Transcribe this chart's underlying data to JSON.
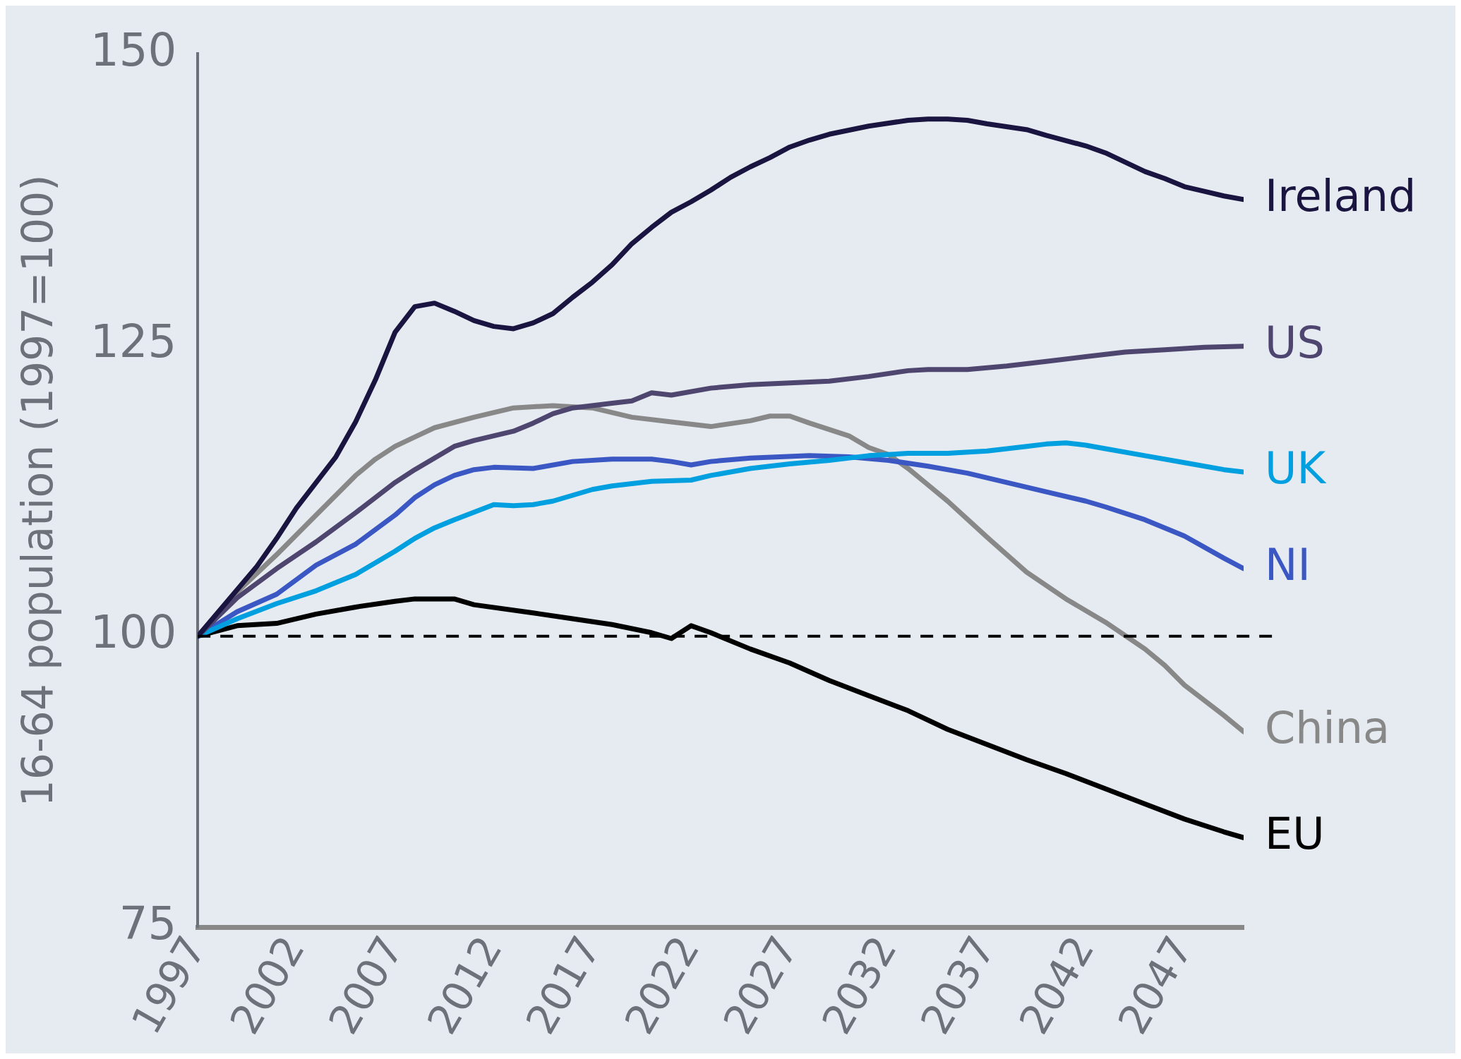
{
  "chart_data": {
    "type": "line",
    "ylabel": "16-64 population (1997=100)",
    "xlim": [
      1997,
      2050
    ],
    "xticks": [
      1997,
      2002,
      2007,
      2012,
      2017,
      2022,
      2027,
      2032,
      2037,
      2042,
      2047
    ],
    "ylim": [
      75,
      150
    ],
    "yticks": [
      75,
      100,
      125,
      150
    ],
    "grid": false,
    "legend": false,
    "marker": "none",
    "line_style": "solid",
    "ref_lines": [
      {
        "axis": "y",
        "value": 100,
        "color": "#000000",
        "line_style": "dashed"
      }
    ],
    "series": [
      {
        "name": "Ireland",
        "color": "#1a1440",
        "x": [
          1997,
          1999,
          2000,
          2001,
          2002,
          2003,
          2004,
          2005,
          2006,
          2007,
          2008,
          2009,
          2010,
          2011,
          2012,
          2013,
          2014,
          2015,
          2016,
          2017,
          2018,
          2019,
          2020,
          2021,
          2022,
          2023,
          2024,
          2025,
          2026,
          2027,
          2028,
          2029,
          2031,
          2033,
          2034,
          2035,
          2036,
          2037,
          2039,
          2040,
          2042,
          2043,
          2044,
          2045,
          2046,
          2047,
          2048,
          2049,
          2050
        ],
        "values": [
          100,
          104,
          106,
          108.4,
          111,
          113.2,
          115.4,
          118.4,
          122,
          126.1,
          128.3,
          128.6,
          127.9,
          127.1,
          126.6,
          126.4,
          126.9,
          127.7,
          129.1,
          130.4,
          131.9,
          133.7,
          135.1,
          136.4,
          137.3,
          138.3,
          139.4,
          140.3,
          141.1,
          142,
          142.6,
          143.1,
          143.8,
          144.3,
          144.4,
          144.4,
          144.3,
          144,
          143.5,
          143,
          142.1,
          141.5,
          140.7,
          139.9,
          139.3,
          138.6,
          138.2,
          137.8,
          137.5
        ]
      },
      {
        "name": "US",
        "color": "#4f4670",
        "x": [
          1997,
          1999,
          2001,
          2003,
          2005,
          2007,
          2008,
          2009,
          2010,
          2011,
          2013,
          2014,
          2015,
          2016,
          2018,
          2019,
          2020,
          2021,
          2023,
          2025,
          2029,
          2031,
          2033,
          2034,
          2036,
          2038,
          2040,
          2042,
          2044,
          2046,
          2048,
          2050
        ],
        "values": [
          100,
          103.3,
          105.8,
          108.1,
          110.6,
          113.2,
          114.3,
          115.3,
          116.3,
          116.8,
          117.6,
          118.3,
          119.1,
          119.6,
          120,
          120.2,
          120.9,
          120.7,
          121.3,
          121.6,
          121.9,
          122.3,
          122.8,
          122.9,
          122.9,
          123.2,
          123.6,
          124,
          124.4,
          124.6,
          124.8,
          124.9
        ]
      },
      {
        "name": "UK",
        "color": "#009fe0",
        "x": [
          1997,
          1999,
          2001,
          2003,
          2005,
          2007,
          2008,
          2009,
          2010,
          2012,
          2013,
          2014,
          2015,
          2017,
          2018,
          2020,
          2022,
          2023,
          2025,
          2027,
          2029,
          2031,
          2033,
          2035,
          2037,
          2039,
          2040,
          2041,
          2042,
          2043,
          2045,
          2047,
          2049,
          2050
        ],
        "values": [
          100,
          101.5,
          102.8,
          103.9,
          105.3,
          107.3,
          108.4,
          109.3,
          110,
          111.3,
          111.2,
          111.3,
          111.6,
          112.6,
          112.9,
          113.3,
          113.4,
          113.8,
          114.4,
          114.8,
          115.1,
          115.5,
          115.7,
          115.7,
          115.9,
          116.3,
          116.5,
          116.6,
          116.4,
          116.1,
          115.5,
          114.9,
          114.3,
          114.1
        ]
      },
      {
        "name": "NI",
        "color": "#3b57c4",
        "x": [
          1997,
          1999,
          2001,
          2003,
          2005,
          2007,
          2008,
          2009,
          2010,
          2011,
          2012,
          2014,
          2016,
          2018,
          2020,
          2021,
          2022,
          2023,
          2025,
          2028,
          2030,
          2032,
          2034,
          2036,
          2038,
          2040,
          2042,
          2043,
          2045,
          2047,
          2049,
          2050
        ],
        "values": [
          100,
          102.1,
          103.6,
          106.1,
          107.9,
          110.4,
          111.9,
          113,
          113.8,
          114.3,
          114.5,
          114.4,
          115,
          115.2,
          115.2,
          115,
          114.7,
          115,
          115.3,
          115.5,
          115.4,
          115.1,
          114.6,
          114,
          113.2,
          112.4,
          111.6,
          111.1,
          110,
          108.6,
          106.7,
          105.8
        ]
      },
      {
        "name": "China",
        "color": "#888888",
        "x": [
          1997,
          1999,
          2001,
          2003,
          2005,
          2006,
          2007,
          2008,
          2009,
          2011,
          2013,
          2015,
          2017,
          2019,
          2021,
          2023,
          2025,
          2026,
          2027,
          2028,
          2030,
          2031,
          2032,
          2033,
          2034,
          2035,
          2037,
          2039,
          2041,
          2043,
          2045,
          2046,
          2047,
          2049,
          2050
        ],
        "values": [
          100,
          103.8,
          107,
          110.4,
          113.8,
          115.2,
          116.3,
          117.1,
          117.9,
          118.8,
          119.6,
          119.8,
          119.6,
          118.8,
          118.4,
          118,
          118.5,
          118.9,
          118.9,
          118.3,
          117.2,
          116.2,
          115.6,
          114.4,
          113,
          111.6,
          108.5,
          105.5,
          103.2,
          101.2,
          98.9,
          97.5,
          95.8,
          93.2,
          91.8
        ]
      },
      {
        "name": "EU",
        "color": "#000000",
        "x": [
          1997,
          1999,
          2001,
          2003,
          2005,
          2007,
          2008,
          2010,
          2011,
          2014,
          2016,
          2018,
          2020,
          2021,
          2022,
          2023,
          2025,
          2027,
          2029,
          2031,
          2033,
          2035,
          2037,
          2039,
          2041,
          2043,
          2045,
          2047,
          2049,
          2050
        ],
        "values": [
          100,
          100.9,
          101.1,
          101.9,
          102.5,
          103,
          103.2,
          103.2,
          102.7,
          102,
          101.5,
          101,
          100.3,
          99.8,
          100.9,
          100.3,
          98.9,
          97.7,
          96.2,
          94.9,
          93.6,
          92,
          90.7,
          89.4,
          88.2,
          86.9,
          85.6,
          84.3,
          83.2,
          82.7
        ]
      }
    ]
  }
}
